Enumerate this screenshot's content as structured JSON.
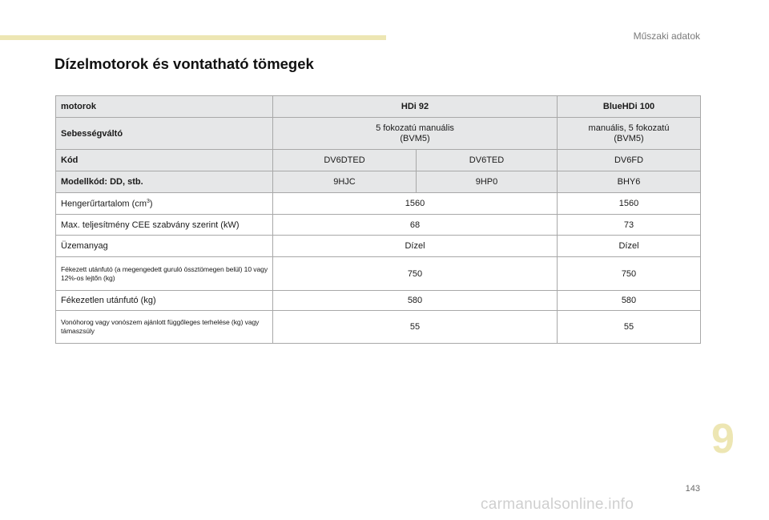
{
  "header": {
    "section_label": "Műszaki adatok",
    "accent_color": "#ede6b3"
  },
  "title": "Dízelmotorok és vontatható tömegek",
  "table": {
    "rows": [
      {
        "label": "motorok",
        "cells": [
          "HDi 92",
          "BlueHDi 100"
        ]
      },
      {
        "label": "Sebességváltó",
        "cells": [
          "5 fokozatú manuális (BVM5)",
          "manuális, 5 fokozatú (BVM5)"
        ]
      },
      {
        "label": "Kód",
        "cells": [
          "DV6DTED",
          "DV6TED",
          "DV6FD"
        ]
      },
      {
        "label": "Modellkód: DD, stb.",
        "cells": [
          "9HJC",
          "9HP0",
          "BHY6"
        ]
      },
      {
        "label_main": "Hengerűrtartalom (cm",
        "label_sup": "3",
        "label_end": ")",
        "cells": [
          "1560",
          "1560"
        ]
      },
      {
        "label": "Max. teljesítmény CEE szabvány szerint (kW)",
        "cells": [
          "68",
          "73"
        ]
      },
      {
        "label": "Üzemanyag",
        "cells": [
          "Dízel",
          "Dízel"
        ]
      },
      {
        "label": "Fékezett utánfutó (a megengedett guruló össztömegen belül) 10 vagy 12%-os lejtőn (kg)",
        "cells": [
          "750",
          "750"
        ]
      },
      {
        "label": "Fékezetlen utánfutó (kg)",
        "cells": [
          "580",
          "580"
        ]
      },
      {
        "label": "Vonóhorog vagy vonószem ajánlott függőleges terhelése (kg) vagy támaszsúly",
        "cells": [
          "55",
          "55"
        ]
      }
    ]
  },
  "chapter_number": "9",
  "page_number": "143",
  "watermark": "carmanualsonline.info"
}
